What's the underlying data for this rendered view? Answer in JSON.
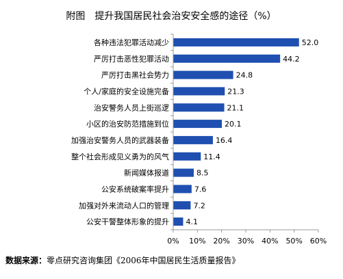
{
  "title": "附图　提升我国居民社会治安安全感的途径（%）",
  "source": {
    "label": "数据来源：",
    "text": "零点研究咨询集团《2006年中国居民生活质量报告》"
  },
  "colors": {
    "bar": "#1f4fb0",
    "axis": "#9a9a9a"
  },
  "chart_data": {
    "type": "bar",
    "orientation": "horizontal",
    "title": "附图　提升我国居民社会治安安全感的途径（%）",
    "xlabel": "",
    "ylabel": "",
    "xlim": [
      0,
      60
    ],
    "x_ticks": [
      0,
      10,
      20,
      30,
      40,
      50,
      60
    ],
    "x_tick_labels": [
      "0%",
      "10%",
      "20%",
      "30%",
      "40%",
      "50%",
      "60%"
    ],
    "grid": false,
    "categories": [
      "各种违法犯罪活动减少",
      "严厉打击恶性犯罪活动",
      "严厉打击黑社会势力",
      "个人/家庭的安全设施完备",
      "治安警务人员上街巡逻",
      "小区的治安防范措施到位",
      "加强治安警务人员的武器装备",
      "整个社会形成见义勇为的风气",
      "新闻媒体报道",
      "公安系统破案率提升",
      "加强对外来流动人口的管理",
      "公安干警整体形象的提升"
    ],
    "values": [
      52.0,
      44.2,
      24.8,
      21.3,
      21.1,
      20.1,
      16.4,
      11.4,
      8.5,
      7.6,
      7.2,
      4.1
    ],
    "value_labels": [
      "52.0",
      "44.2",
      "24.8",
      "21.3",
      "21.1",
      "20.1",
      "16.4",
      "11.4",
      "8.5",
      "7.6",
      "7.2",
      "4.1"
    ]
  }
}
